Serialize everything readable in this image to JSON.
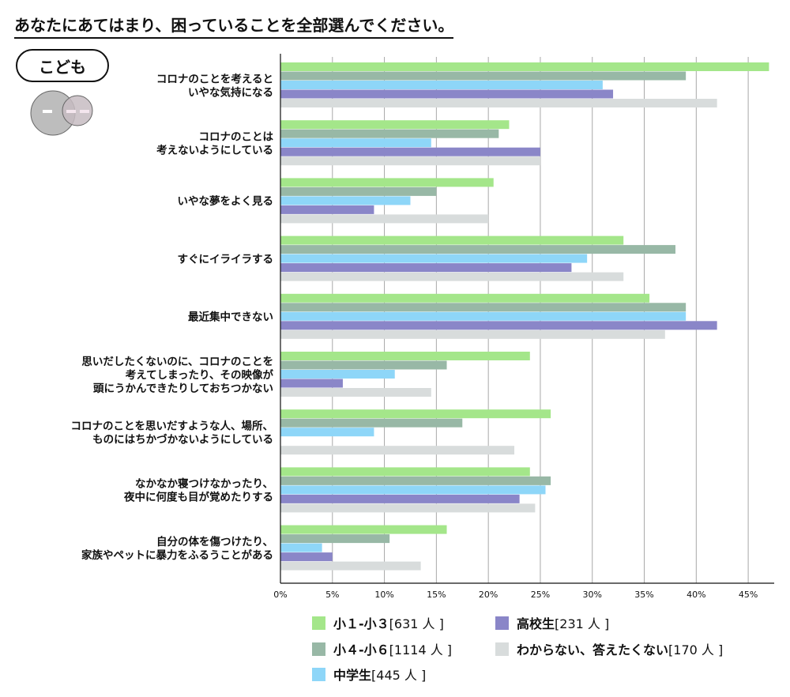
{
  "header": {
    "question": "あなたにあてはまり、困っていることを全部選んでください。",
    "badge": "こども"
  },
  "chart_data": {
    "type": "bar",
    "orientation": "horizontal",
    "categories": [
      [
        "コロナのことを考えると",
        "いやな気持になる"
      ],
      [
        "コロナのことは",
        "考えないようにしている"
      ],
      [
        "いやな夢をよく見る"
      ],
      [
        "すぐにイライラする"
      ],
      [
        "最近集中できない"
      ],
      [
        "思いだしたくないのに、コロナのことを",
        "考えてしまったり、その映像が",
        "頭にうかんできたりしておちつかない"
      ],
      [
        "コロナのことを思いだすような人、場所、",
        "ものにはちかづかないようにしている"
      ],
      [
        "なかなか寝つけなかったり、",
        "夜中に何度も目が覚めたりする"
      ],
      [
        "自分の体を傷つけたり、",
        "家族やペットに暴力をふるうことがある"
      ]
    ],
    "series": [
      {
        "name": "小１-小３",
        "count": "[631 人 ]",
        "color": "#a4e68a",
        "values": [
          47,
          22,
          20.5,
          33,
          35.5,
          24,
          26,
          24,
          16
        ]
      },
      {
        "name": "小４-小６",
        "count": "[1114 人 ]",
        "color": "#98b8a6",
        "values": [
          39,
          21,
          15,
          38,
          39,
          16,
          17.5,
          26,
          10.5
        ]
      },
      {
        "name": "中学生",
        "count": "[445 人 ]",
        "color": "#8ed6f8",
        "values": [
          31,
          14.5,
          12.5,
          29.5,
          39,
          11,
          9,
          25.5,
          4
        ]
      },
      {
        "name": "高校生",
        "count": "[231 人 ]",
        "color": "#8a86c8",
        "values": [
          32,
          25,
          9,
          28,
          42,
          6,
          0,
          23,
          5
        ]
      },
      {
        "name": "わからない、答えたくない",
        "count": "[170 人 ]",
        "color": "#d8dcdc",
        "values": [
          42,
          25,
          20,
          33,
          37,
          14.5,
          22.5,
          24.5,
          13.5
        ]
      }
    ],
    "xlim": [
      0,
      47.5
    ],
    "xticks": [
      "0%",
      "5%",
      "10%",
      "15%",
      "20%",
      "25%",
      "30%",
      "35%",
      "40%",
      "45%"
    ],
    "xtick_values": [
      0,
      5,
      10,
      15,
      20,
      25,
      30,
      35,
      40,
      45
    ],
    "grid": true,
    "legend": "bottom"
  }
}
